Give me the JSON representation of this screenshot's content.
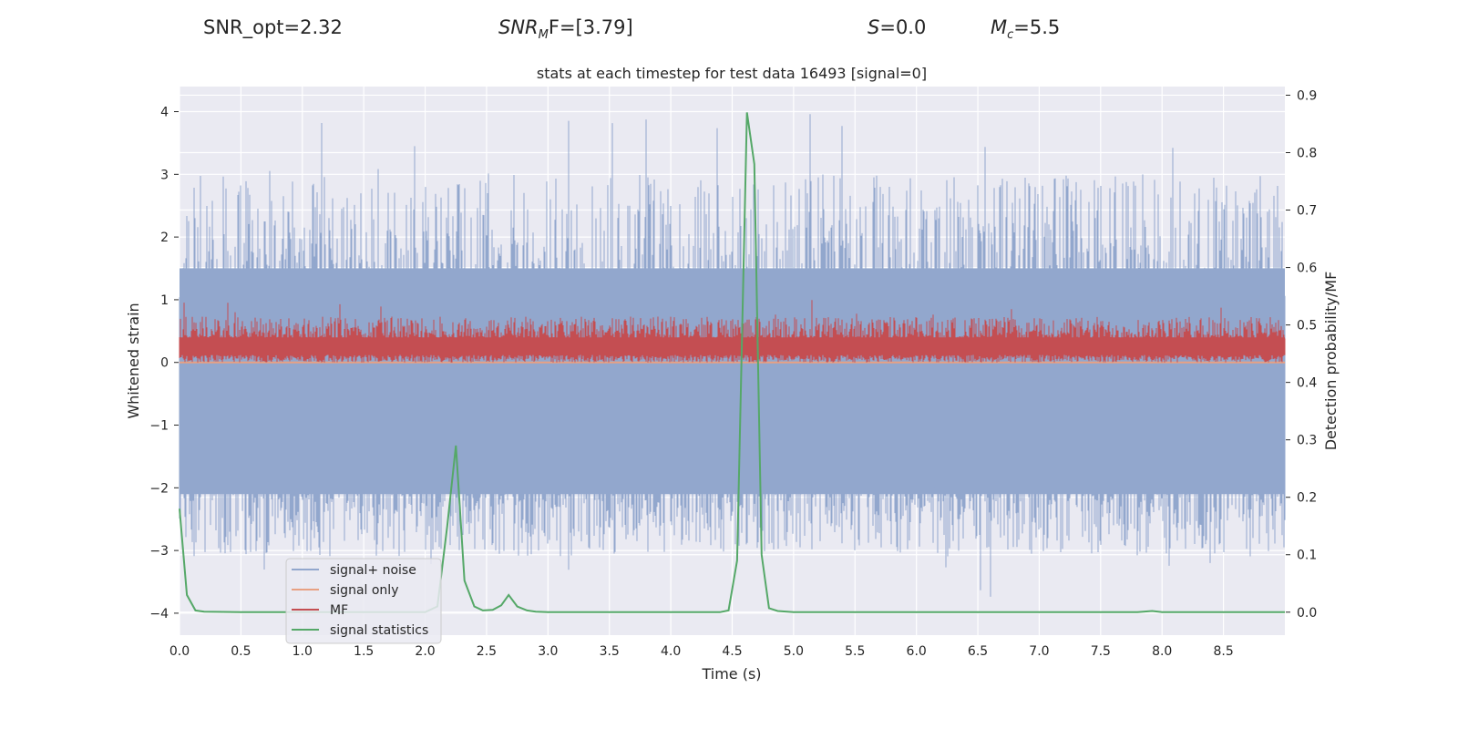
{
  "header": {
    "snr_opt": "SNR_opt=2.32",
    "snr_mf_main": "SNR",
    "snr_mf_sub": "M",
    "snr_mf_rest": "F=[3.79]",
    "s_italic": "S",
    "s_rest": "=0.0",
    "mc_italic": "M",
    "mc_sub": "c",
    "mc_rest": "=5.5"
  },
  "chart_data": {
    "type": "line",
    "title": "stats at each timestep for test data 16493 [signal=0]",
    "xlabel": "Time (s)",
    "ylabel": "Whitened strain",
    "y2label": "Detection probability/MF",
    "xlim": [
      0,
      9
    ],
    "ylim": [
      -4.35,
      4.4
    ],
    "y2lim": [
      -0.04,
      0.915
    ],
    "xticks": [
      "0.0",
      "0.5",
      "1.0",
      "1.5",
      "2.0",
      "2.5",
      "3.0",
      "3.5",
      "4.0",
      "4.5",
      "5.0",
      "5.5",
      "6.0",
      "6.5",
      "7.0",
      "7.5",
      "8.0",
      "8.5"
    ],
    "yticks": [
      "4",
      "3",
      "2",
      "1",
      "0",
      "−1",
      "−2",
      "−3",
      "−4"
    ],
    "y2ticks": [
      "0.9",
      "0.8",
      "0.7",
      "0.6",
      "0.5",
      "0.4",
      "0.3",
      "0.2",
      "0.1",
      "0.0"
    ],
    "grid": true,
    "legend_position": "lower-left",
    "colors": {
      "noise": "#92a7cd",
      "signal": "#e8a183",
      "mf": "#c44e52",
      "stat": "#55a868",
      "plot_bg": "#eaeaf2"
    },
    "series": [
      {
        "name": "signal+ noise",
        "axis": "left",
        "envelope": {
          "typical_upper": 1.5,
          "typical_lower": -2.1,
          "max_peak": 4.0,
          "min_peak": -4.0
        }
      },
      {
        "name": "signal only",
        "axis": "left",
        "value": 0.0
      },
      {
        "name": "MF",
        "axis": "left",
        "envelope": {
          "lower": 0.0,
          "typical_upper": 0.5,
          "max_peak": 1.0
        }
      },
      {
        "name": "signal statistics",
        "axis": "right",
        "x": [
          0.0,
          0.06,
          0.13,
          0.2,
          0.5,
          1.0,
          1.5,
          2.0,
          2.1,
          2.18,
          2.25,
          2.32,
          2.4,
          2.47,
          2.55,
          2.62,
          2.68,
          2.75,
          2.83,
          2.9,
          3.0,
          3.5,
          4.0,
          4.4,
          4.47,
          4.54,
          4.62,
          4.68,
          4.74,
          4.8,
          4.87,
          5.0,
          6.0,
          7.0,
          7.5,
          7.8,
          7.92,
          8.0,
          8.5,
          9.0
        ],
        "y": [
          0.18,
          0.03,
          0.003,
          0.001,
          0.0,
          0.0,
          0.0,
          0.0,
          0.01,
          0.15,
          0.29,
          0.055,
          0.01,
          0.003,
          0.004,
          0.012,
          0.03,
          0.01,
          0.003,
          0.001,
          0.0,
          0.0,
          0.0,
          0.0,
          0.003,
          0.09,
          0.87,
          0.78,
          0.1,
          0.007,
          0.002,
          0.0,
          0.0,
          0.0,
          0.0,
          0.0,
          0.002,
          0.0,
          0.0,
          0.0
        ]
      }
    ]
  }
}
